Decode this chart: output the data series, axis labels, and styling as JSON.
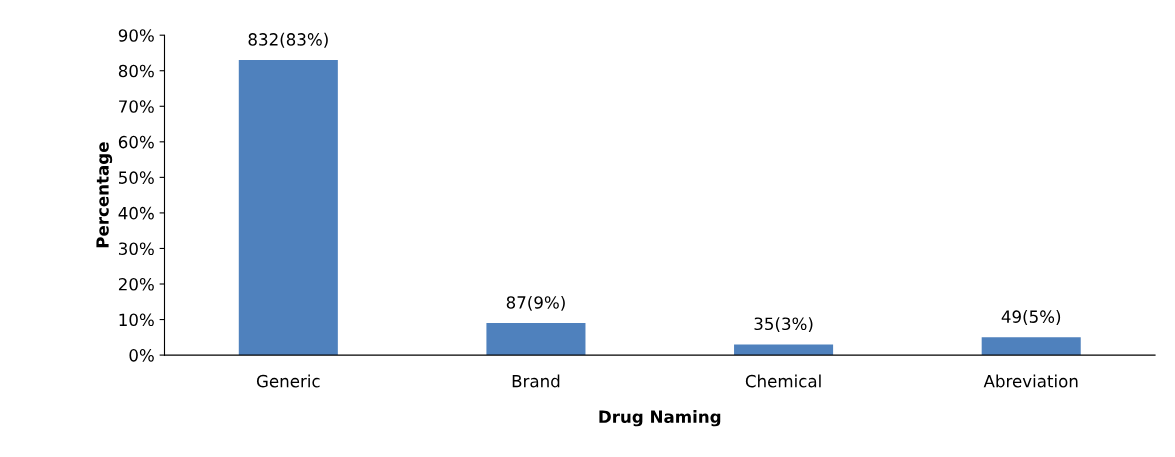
{
  "chart_data": {
    "type": "bar",
    "xlabel": "Drug Naming",
    "ylabel": "Percentage",
    "categories": [
      "Generic",
      "Brand",
      "Chemical",
      "Abreviation"
    ],
    "values": [
      83,
      9,
      3,
      5
    ],
    "value_labels": [
      "832(83%)",
      "87(9%)",
      "35(3%)",
      "49(5%)"
    ],
    "color": "#4f81bd",
    "ylim": [
      0,
      90
    ],
    "yticks": [
      {
        "value": 0,
        "label": "0%"
      },
      {
        "value": 10,
        "label": "10%"
      },
      {
        "value": 20,
        "label": "20%"
      },
      {
        "value": 30,
        "label": "30%"
      },
      {
        "value": 40,
        "label": "40%"
      },
      {
        "value": 50,
        "label": "50%"
      },
      {
        "value": 60,
        "label": "60%"
      },
      {
        "value": 70,
        "label": "70%"
      },
      {
        "value": 80,
        "label": "80%"
      },
      {
        "value": 90,
        "label": "90%"
      }
    ],
    "grid": false,
    "legend": false
  }
}
